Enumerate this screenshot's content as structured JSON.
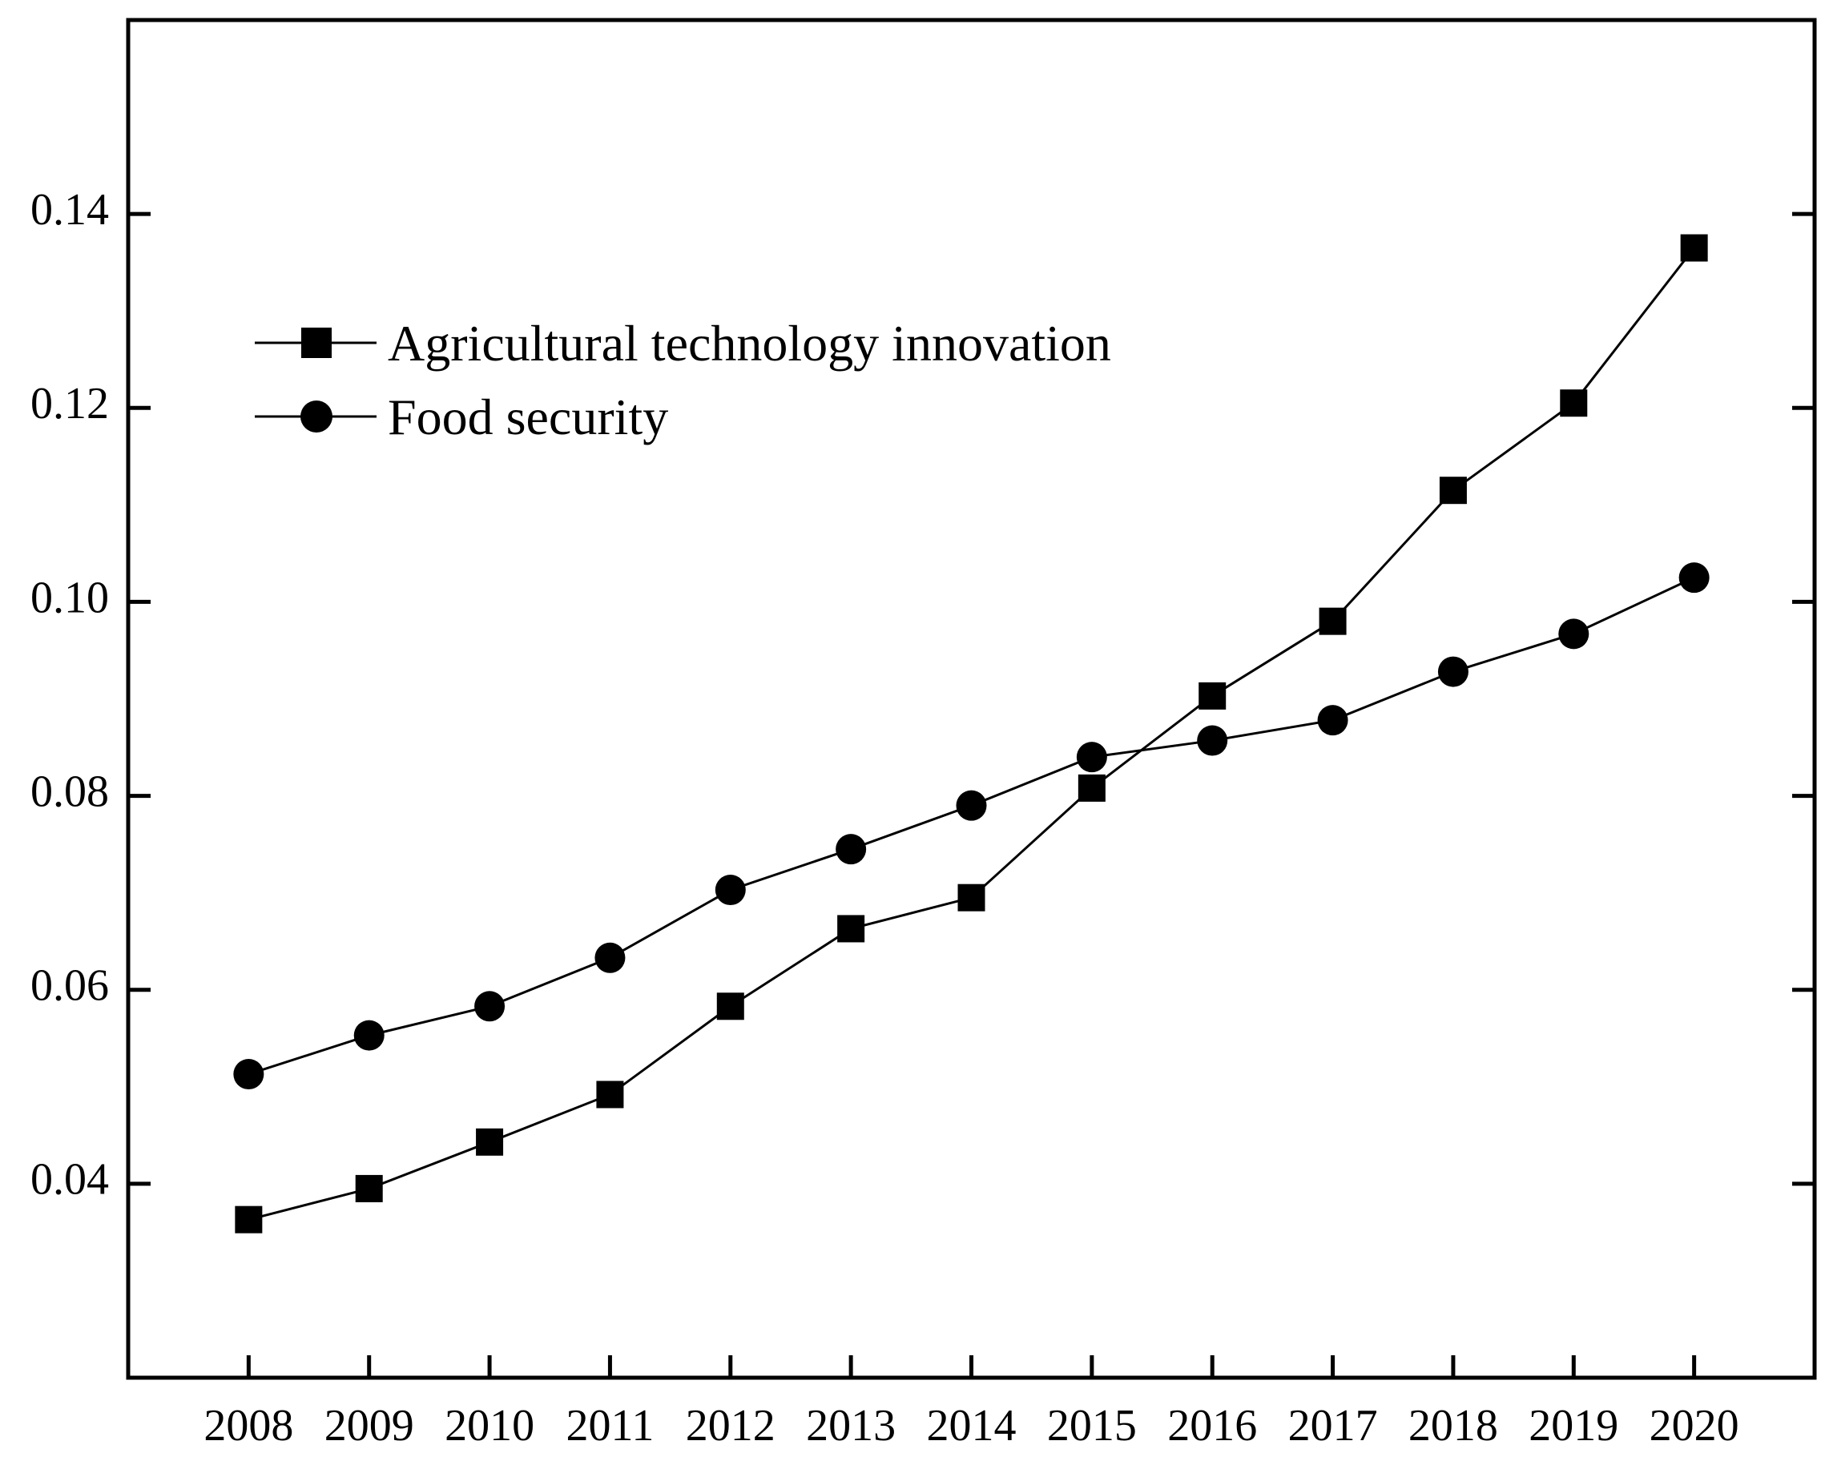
{
  "chart_data": {
    "type": "line",
    "title": "",
    "xlabel": "",
    "ylabel": "",
    "x": [
      "2008",
      "2009",
      "2010",
      "2011",
      "2012",
      "2013",
      "2014",
      "2015",
      "2016",
      "2017",
      "2018",
      "2019",
      "2020"
    ],
    "xlim": [
      2007,
      2021
    ],
    "ylim": [
      0.02,
      0.16
    ],
    "yticks": [
      0.04,
      0.06,
      0.08,
      0.1,
      0.12,
      0.14
    ],
    "ytick_labels": [
      "0.04",
      "0.06",
      "0.08",
      "0.10",
      "0.12",
      "0.14"
    ],
    "grid": false,
    "legend_position": "top-left",
    "series": [
      {
        "name": "Agricultural technology innovation",
        "marker": "square",
        "color": "#000000",
        "values": [
          0.0363,
          0.0395,
          0.0443,
          0.0492,
          0.0583,
          0.0663,
          0.0695,
          0.0808,
          0.0903,
          0.098,
          0.1115,
          0.1205,
          0.1365
        ]
      },
      {
        "name": "Food security",
        "marker": "circle",
        "color": "#000000",
        "values": [
          0.0513,
          0.0553,
          0.0583,
          0.0633,
          0.0703,
          0.0745,
          0.079,
          0.084,
          0.0857,
          0.0878,
          0.0928,
          0.0967,
          0.1025
        ]
      }
    ]
  }
}
